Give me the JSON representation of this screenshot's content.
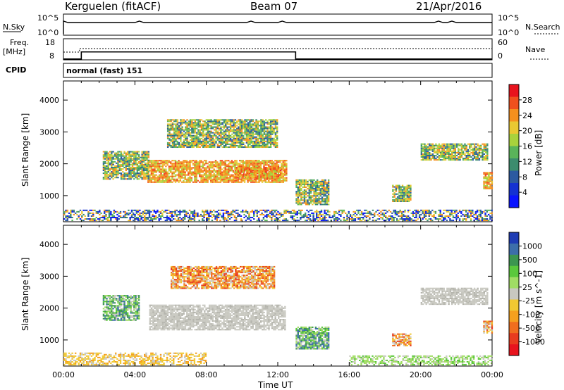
{
  "header": {
    "site": "Kerguelen (fitACF)",
    "beam": "Beam 07",
    "date": "21/Apr/2016"
  },
  "panels": {
    "nsky_label": "N.Sky",
    "nsky_ticks": [
      "10^5",
      "10^0"
    ],
    "nsearch_label": "N.Search",
    "nsearch_ticks": [
      "10^5",
      "10^0"
    ],
    "freq_label_1": "Freq.",
    "freq_label_2": "[MHz]",
    "freq_ticks": [
      "18",
      "8"
    ],
    "nave_label": "Nave",
    "nave_ticks": [
      "60",
      "0"
    ],
    "cpid_label": "CPID",
    "cpid_value": "normal (fast) 151"
  },
  "colorbars": {
    "power": {
      "label": "Power [dB]",
      "ticks": [
        "28",
        "24",
        "20",
        "16",
        "12",
        "8",
        "4"
      ],
      "colors": [
        "#e8141e",
        "#f0501e",
        "#f5901e",
        "#e9c832",
        "#a8d23c",
        "#5ab45a",
        "#3c8c6e",
        "#2c5aa0",
        "#1432d2",
        "#0a14ff"
      ]
    },
    "velocity": {
      "label": "Velocity [m s^-1]",
      "ticks": [
        "1000",
        "500",
        "100",
        "25",
        "-25",
        "-100",
        "-500",
        "-1000"
      ],
      "colors": [
        "#1e3cb4",
        "#3c6eaa",
        "#3c9650",
        "#5ac83c",
        "#a0dc64",
        "#c8c8c0",
        "#f0c832",
        "#f5a01e",
        "#f06e1e",
        "#e83c1e",
        "#e8141e"
      ]
    }
  },
  "chart_data": {
    "type": "heatmap",
    "xlabel": "Time UT",
    "ylabel": "Slant Range [km]",
    "x_ticks": [
      "00:00",
      "04:00",
      "08:00",
      "12:00",
      "16:00",
      "20:00",
      "00:00"
    ],
    "y_ticks": [
      1000,
      2000,
      3000,
      4000
    ],
    "xlim_hours": [
      0,
      24
    ],
    "ylim_km": [
      180,
      4600
    ],
    "freq_mhz": [
      [
        0,
        8.5
      ],
      [
        1,
        12.5
      ],
      [
        13,
        8.5
      ],
      [
        24,
        8.5
      ]
    ],
    "power_regions": [
      {
        "t0": 9.6,
        "t1": 12.2,
        "r0": 1500,
        "r1": 1900,
        "level": "high"
      },
      {
        "t0": 4.7,
        "t1": 12.5,
        "r0": 1400,
        "r1": 2100,
        "level": "mid"
      },
      {
        "t0": 2.2,
        "t1": 4.8,
        "r0": 1500,
        "r1": 2400,
        "level": "low"
      },
      {
        "t0": 5.8,
        "t1": 12.0,
        "r0": 2500,
        "r1": 3400,
        "level": "low"
      },
      {
        "t0": 13.0,
        "t1": 14.8,
        "r0": 700,
        "r1": 1500,
        "level": "low"
      },
      {
        "t0": 0.0,
        "t1": 24.0,
        "r0": 200,
        "r1": 550,
        "level": "noise"
      },
      {
        "t0": 18.4,
        "t1": 19.4,
        "r0": 800,
        "r1": 1300,
        "level": "low"
      },
      {
        "t0": 20.0,
        "t1": 23.7,
        "r0": 2100,
        "r1": 2600,
        "level": "low"
      },
      {
        "t0": 23.5,
        "t1": 24.0,
        "r0": 1200,
        "r1": 1700,
        "level": "mid"
      }
    ],
    "velocity_regions": [
      {
        "t0": 4.8,
        "t1": 12.4,
        "r0": 1300,
        "r1": 2100,
        "class": "gs"
      },
      {
        "t0": 6.0,
        "t1": 11.8,
        "r0": 2600,
        "r1": 3300,
        "class": "neg"
      },
      {
        "t0": 2.2,
        "t1": 4.2,
        "r0": 1600,
        "r1": 2400,
        "class": "pos"
      },
      {
        "t0": 0.0,
        "t1": 8.0,
        "r0": 200,
        "r1": 600,
        "class": "neg-small"
      },
      {
        "t0": 13.0,
        "t1": 14.8,
        "r0": 700,
        "r1": 1400,
        "class": "pos"
      },
      {
        "t0": 18.4,
        "t1": 19.4,
        "r0": 800,
        "r1": 1200,
        "class": "neg"
      },
      {
        "t0": 16.0,
        "t1": 24.0,
        "r0": 200,
        "r1": 500,
        "class": "pos-small"
      },
      {
        "t0": 20.0,
        "t1": 23.7,
        "r0": 2100,
        "r1": 2600,
        "class": "gs"
      },
      {
        "t0": 23.5,
        "t1": 24.0,
        "r0": 1200,
        "r1": 1600,
        "class": "neg"
      }
    ]
  }
}
